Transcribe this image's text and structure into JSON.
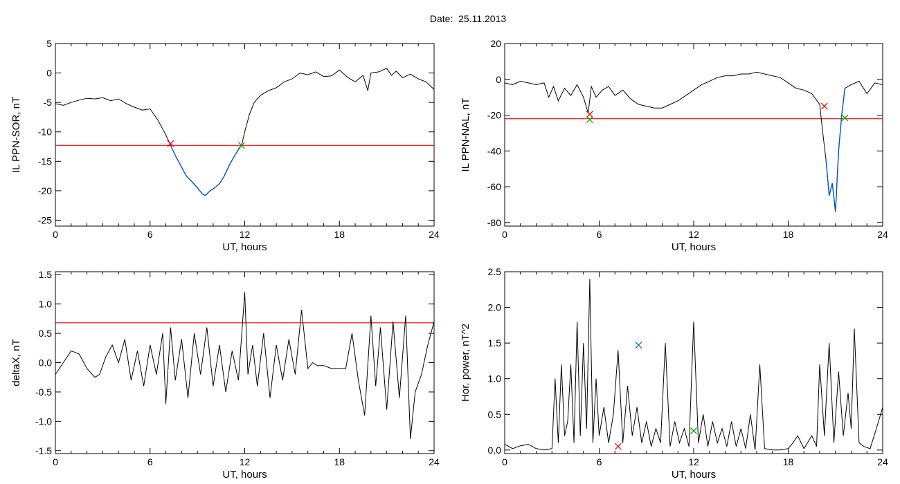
{
  "header": {
    "title": "Date:  25.11.2013"
  },
  "colors": {
    "threshold": "#ff0000",
    "highlight": "#0055cc",
    "start_marker": "#ff0000",
    "end_marker": "#00aa00",
    "peak_marker": "#1f77b4",
    "trace": "#000000"
  },
  "chart_data": [
    {
      "id": "sor",
      "type": "line",
      "xlabel": "UT, hours",
      "ylabel": "IL PPN-SOR, nT",
      "xlim": [
        0,
        24
      ],
      "ylim": [
        -26,
        5
      ],
      "xticks": [
        0,
        6,
        12,
        18,
        24
      ],
      "yticks": [
        5,
        0,
        -5,
        -10,
        -15,
        -20,
        -25
      ],
      "threshold": -12.3,
      "series": [
        {
          "x": [
            0,
            0.5,
            1,
            1.5,
            2,
            2.5,
            3,
            3.5,
            4,
            4.5,
            5,
            5.5,
            6,
            6.5,
            7,
            7.3,
            7.6,
            8,
            8.3,
            8.6,
            9,
            9.3,
            9.5,
            9.8,
            10.1,
            10.4,
            10.7,
            11,
            11.3,
            11.6,
            11.8,
            12,
            12.3,
            12.6,
            13,
            13.5,
            14,
            14.5,
            15,
            15.5,
            16,
            16.5,
            17,
            17.5,
            18,
            18.5,
            19,
            19.5,
            19.8,
            20,
            20.5,
            21,
            21.3,
            21.6,
            22,
            22.5,
            23,
            23.5,
            24
          ],
          "y": [
            -5.2,
            -5.5,
            -5.0,
            -4.6,
            -4.3,
            -4.4,
            -4.2,
            -4.7,
            -4.4,
            -5.2,
            -5.8,
            -6.3,
            -6.1,
            -8.0,
            -10.5,
            -12.3,
            -14.0,
            -16.0,
            -17.5,
            -18.3,
            -19.5,
            -20.5,
            -20.8,
            -20.0,
            -19.5,
            -18.8,
            -17.5,
            -15.8,
            -14.3,
            -13.0,
            -12.3,
            -10.0,
            -7.0,
            -5.0,
            -3.8,
            -3.0,
            -2.5,
            -1.5,
            -1.0,
            0.0,
            -0.3,
            0.2,
            -0.6,
            -0.5,
            0.5,
            -0.7,
            -1.5,
            -0.4,
            -3.0,
            0.0,
            0.2,
            0.8,
            -0.4,
            0.3,
            -0.8,
            -0.2,
            -1.0,
            -1.5,
            -2.8
          ],
          "highlight_range": [
            7.3,
            11.8
          ]
        }
      ],
      "markers": [
        {
          "x": 7.3,
          "y": -12.0,
          "kind": "start"
        },
        {
          "x": 11.8,
          "y": -12.3,
          "kind": "end"
        }
      ]
    },
    {
      "id": "nal",
      "type": "line",
      "xlabel": "UT, hours",
      "ylabel": "IL PPN-NAL, nT",
      "xlim": [
        0,
        24
      ],
      "ylim": [
        -82,
        20
      ],
      "xticks": [
        0,
        6,
        12,
        18,
        24
      ],
      "yticks": [
        20,
        0,
        -20,
        -40,
        -60,
        -80
      ],
      "threshold": -22,
      "series": [
        {
          "x": [
            0,
            0.5,
            1,
            1.5,
            2,
            2.5,
            2.8,
            3.1,
            3.4,
            3.8,
            4.2,
            4.6,
            5,
            5.3,
            5.5,
            5.8,
            6.2,
            6.6,
            7,
            7.5,
            8,
            8.5,
            9,
            9.5,
            10,
            10.5,
            11,
            11.5,
            12,
            12.5,
            13,
            13.5,
            14,
            14.5,
            15,
            15.5,
            16,
            16.5,
            17,
            17.5,
            18,
            18.5,
            19,
            19.5,
            20,
            20.2,
            20.4,
            20.6,
            20.8,
            21,
            21.2,
            21.4,
            21.6,
            22,
            22.5,
            23,
            23.5,
            24
          ],
          "y": [
            -2,
            -3,
            -1,
            -2,
            -3,
            -2,
            -10,
            -4,
            -12,
            -5,
            -9,
            -3,
            -10,
            -19,
            -4,
            -10,
            -6,
            -4,
            -9,
            -6,
            -11,
            -14,
            -15,
            -16,
            -16,
            -14,
            -12,
            -9,
            -6,
            -3,
            -1,
            1,
            2,
            2,
            3,
            3,
            4,
            3,
            2,
            1,
            -2,
            -5,
            -6,
            -8,
            -14,
            -30,
            -45,
            -65,
            -58,
            -74,
            -40,
            -20,
            -5,
            -3,
            -1,
            -8,
            -2,
            -3
          ],
          "highlight_range": [
            20.3,
            21.6
          ]
        }
      ],
      "markers": [
        {
          "x": 5.4,
          "y": -19.5,
          "kind": "start"
        },
        {
          "x": 5.4,
          "y": -22.5,
          "kind": "end"
        },
        {
          "x": 20.3,
          "y": -15.0,
          "kind": "start"
        },
        {
          "x": 21.6,
          "y": -21.5,
          "kind": "end"
        }
      ]
    },
    {
      "id": "deltax",
      "type": "line",
      "xlabel": "UT, hours",
      "ylabel": "deltaX, nT",
      "xlim": [
        0,
        24
      ],
      "ylim": [
        -1.55,
        1.55
      ],
      "xticks": [
        0,
        6,
        12,
        18,
        24
      ],
      "yticks": [
        1.5,
        1.0,
        0.5,
        0.0,
        -0.5,
        -1.0,
        -1.5
      ],
      "threshold": 0.68,
      "series": [
        {
          "x": [
            0,
            0.5,
            1,
            1.5,
            2,
            2.5,
            2.8,
            3.2,
            3.6,
            4,
            4.4,
            4.8,
            5.2,
            5.6,
            6,
            6.4,
            6.8,
            7,
            7.3,
            7.6,
            8,
            8.4,
            8.8,
            9.2,
            9.6,
            10,
            10.4,
            10.8,
            11.2,
            11.6,
            12,
            12.2,
            12.5,
            12.8,
            13.2,
            13.6,
            14,
            14.4,
            14.8,
            15.2,
            15.6,
            16,
            16.3,
            16.6,
            17,
            17.5,
            18,
            18.4,
            18.8,
            19.2,
            19.6,
            20,
            20.3,
            20.6,
            21,
            21.4,
            21.8,
            22.2,
            22.5,
            22.8,
            23.2,
            23.6,
            24
          ],
          "y": [
            -0.2,
            0.0,
            0.2,
            0.15,
            -0.1,
            -0.25,
            -0.2,
            0.1,
            0.3,
            0.0,
            0.4,
            -0.3,
            0.2,
            -0.4,
            0.3,
            -0.2,
            0.5,
            -0.7,
            0.6,
            -0.3,
            0.4,
            -0.6,
            0.5,
            -0.2,
            0.6,
            -0.4,
            0.3,
            -0.5,
            0.2,
            -0.3,
            1.2,
            -0.2,
            0.3,
            -0.4,
            0.5,
            -0.6,
            0.3,
            -0.3,
            0.4,
            -0.2,
            0.9,
            -0.1,
            0.0,
            -0.05,
            -0.05,
            -0.1,
            -0.1,
            -0.1,
            0.5,
            -0.3,
            -0.9,
            0.8,
            -0.4,
            0.6,
            -0.8,
            0.7,
            -0.6,
            0.8,
            -1.3,
            -0.5,
            -0.2,
            0.3,
            0.7
          ]
        }
      ],
      "markers": []
    },
    {
      "id": "power",
      "type": "line",
      "xlabel": "UT, hours",
      "ylabel": "Hor. power, nT^2",
      "xlim": [
        0,
        24
      ],
      "ylim": [
        -0.05,
        2.5
      ],
      "xticks": [
        0,
        6,
        12,
        18,
        24
      ],
      "yticks": [
        2.5,
        2.0,
        1.5,
        1.0,
        0.5,
        0.0
      ],
      "threshold": null,
      "series": [
        {
          "x": [
            0,
            0.5,
            1,
            1.5,
            2,
            2.5,
            3,
            3.2,
            3.4,
            3.6,
            3.8,
            4,
            4.2,
            4.4,
            4.6,
            4.8,
            5,
            5.2,
            5.4,
            5.6,
            5.8,
            6,
            6.3,
            6.6,
            6.9,
            7.2,
            7.5,
            7.8,
            8.1,
            8.4,
            8.7,
            9,
            9.3,
            9.6,
            9.9,
            10.2,
            10.5,
            10.8,
            11.1,
            11.4,
            11.7,
            12,
            12.3,
            12.6,
            12.9,
            13.2,
            13.5,
            13.8,
            14.1,
            14.4,
            14.7,
            15,
            15.3,
            15.6,
            15.9,
            16.2,
            16.5,
            17,
            17.5,
            18,
            18.3,
            18.6,
            19,
            19.5,
            19.8,
            20,
            20.3,
            20.6,
            20.9,
            21.2,
            21.5,
            21.8,
            22,
            22.2,
            22.5,
            22.8,
            23.2,
            23.6,
            24
          ],
          "y": [
            0.08,
            0.02,
            0.06,
            0.08,
            0.02,
            0.0,
            0.02,
            1.0,
            0.1,
            1.2,
            0.2,
            0.4,
            1.2,
            0.1,
            1.8,
            0.2,
            1.5,
            0.3,
            2.4,
            0.1,
            1.0,
            0.2,
            0.6,
            0.1,
            0.5,
            1.4,
            0.1,
            0.9,
            0.2,
            0.6,
            0.1,
            0.4,
            0.05,
            0.3,
            0.1,
            1.5,
            0.05,
            0.4,
            0.1,
            0.3,
            0.05,
            1.8,
            0.1,
            0.5,
            0.05,
            0.4,
            0.1,
            0.3,
            0.05,
            0.4,
            0.05,
            0.3,
            0.02,
            0.5,
            0.0,
            1.2,
            0.02,
            0.0,
            0.0,
            0.02,
            0.1,
            0.2,
            0.02,
            0.2,
            0.05,
            1.2,
            0.2,
            1.5,
            0.1,
            1.1,
            0.2,
            0.8,
            0.3,
            1.7,
            0.1,
            0.05,
            0.02,
            0.3,
            0.6
          ]
        }
      ],
      "markers": [
        {
          "x": 7.2,
          "y": 0.05,
          "kind": "start"
        },
        {
          "x": 8.5,
          "y": 1.47,
          "kind": "peak"
        },
        {
          "x": 12.0,
          "y": 0.27,
          "kind": "end"
        }
      ]
    }
  ]
}
